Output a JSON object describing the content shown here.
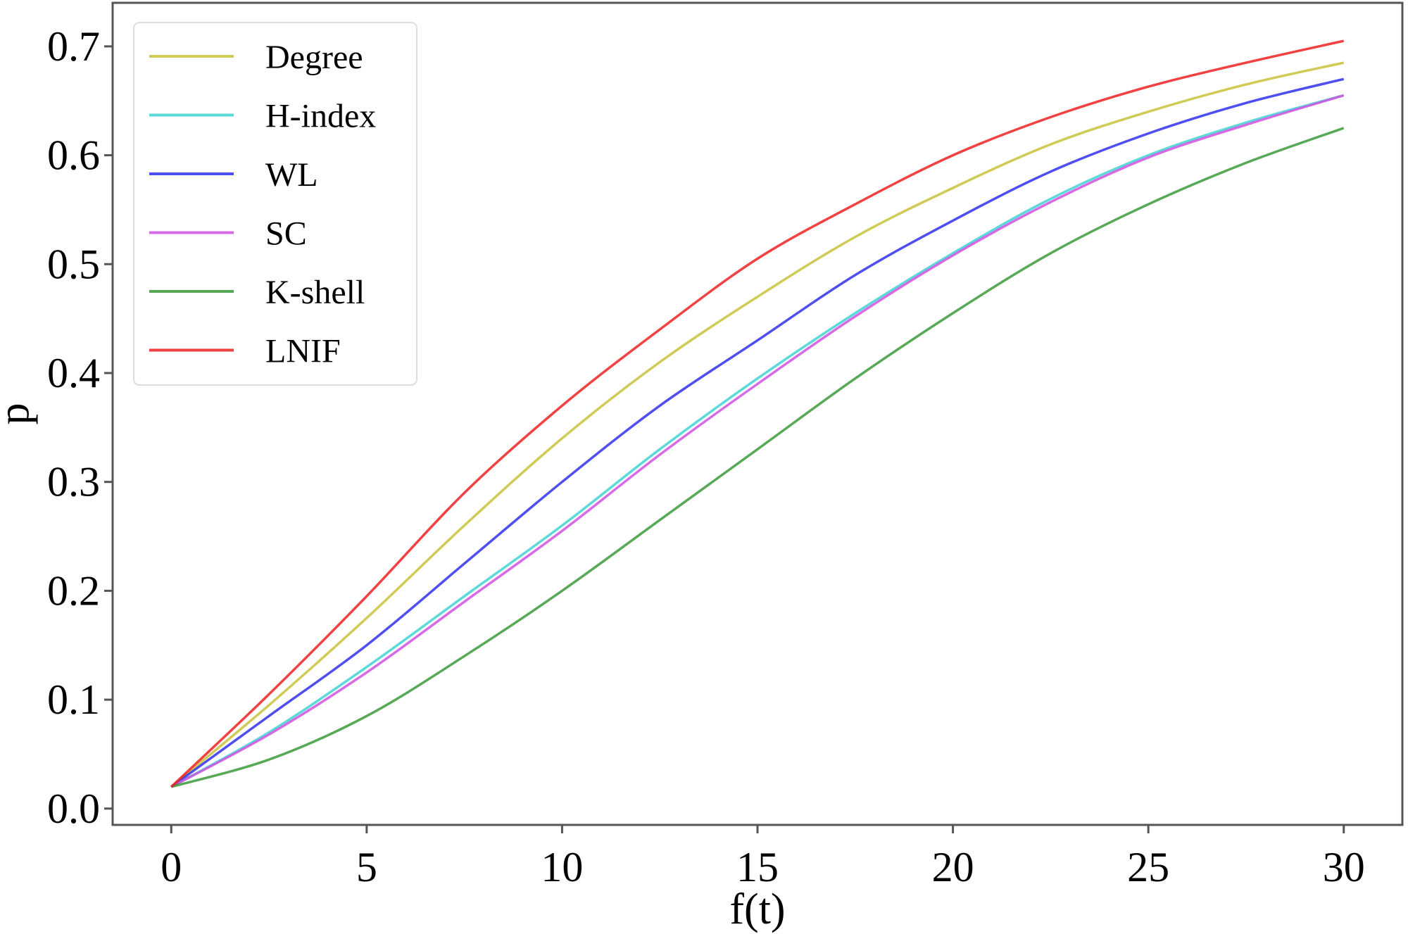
{
  "chart_data": {
    "type": "line",
    "xlabel": "f(t)",
    "ylabel": "p",
    "xlim": [
      -1.5,
      31.5
    ],
    "ylim": [
      -0.015,
      0.74
    ],
    "xticks": [
      0,
      5,
      10,
      15,
      20,
      25,
      30
    ],
    "yticks": [
      0.0,
      0.1,
      0.2,
      0.3,
      0.4,
      0.5,
      0.6,
      0.7
    ],
    "xtick_labels": [
      "0",
      "5",
      "10",
      "15",
      "20",
      "25",
      "30"
    ],
    "ytick_labels": [
      "0.0",
      "0.1",
      "0.2",
      "0.3",
      "0.4",
      "0.5",
      "0.6",
      "0.7"
    ],
    "grid": false,
    "legend_position": "upper-left",
    "x": [
      0,
      2.5,
      5,
      7.5,
      10,
      12.5,
      15,
      17.5,
      20,
      22.5,
      25,
      27.5,
      30
    ],
    "series": [
      {
        "name": "Degree",
        "color": "#c8c23a",
        "values": [
          0.02,
          0.095,
          0.175,
          0.26,
          0.34,
          0.41,
          0.47,
          0.525,
          0.57,
          0.61,
          0.64,
          0.665,
          0.685
        ]
      },
      {
        "name": "H-index",
        "color": "#3fd3d3",
        "values": [
          0.02,
          0.07,
          0.13,
          0.195,
          0.26,
          0.33,
          0.395,
          0.455,
          0.51,
          0.56,
          0.6,
          0.63,
          0.655
        ]
      },
      {
        "name": "WL",
        "color": "#3030ee",
        "values": [
          0.02,
          0.085,
          0.15,
          0.225,
          0.3,
          0.37,
          0.43,
          0.49,
          0.54,
          0.585,
          0.62,
          0.648,
          0.67
        ]
      },
      {
        "name": "SC",
        "color": "#d050e0",
        "values": [
          0.02,
          0.068,
          0.125,
          0.19,
          0.255,
          0.325,
          0.39,
          0.452,
          0.508,
          0.557,
          0.598,
          0.628,
          0.655
        ]
      },
      {
        "name": "K-shell",
        "color": "#3a9a3a",
        "values": [
          0.02,
          0.045,
          0.085,
          0.14,
          0.2,
          0.265,
          0.33,
          0.395,
          0.455,
          0.51,
          0.555,
          0.593,
          0.625
        ]
      },
      {
        "name": "LNIF",
        "color": "#ee2020",
        "values": [
          0.02,
          0.105,
          0.195,
          0.29,
          0.37,
          0.44,
          0.505,
          0.555,
          0.6,
          0.635,
          0.663,
          0.685,
          0.705
        ]
      }
    ]
  }
}
